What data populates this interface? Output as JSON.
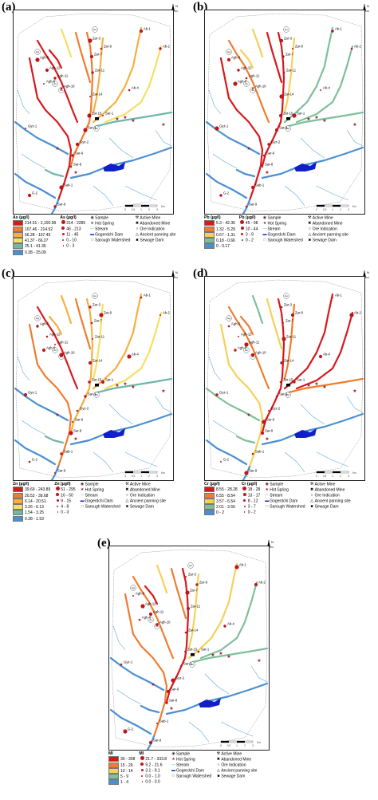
{
  "panels": [
    {
      "id": "a",
      "label": "(a)",
      "element": "As",
      "conc_title": "As (µg/l)",
      "sample_title": "As (µg/l)",
      "classes": [
        "214.51 - 2,100.58",
        "107.46 - 214.52",
        "66.28 - 107.45",
        "41.37 - 66.27",
        "25.1 - 41.36",
        "0.38 - 25.09"
      ],
      "class_colors": [
        "#d7191c",
        "#f07c2f",
        "#f5b041",
        "#f7df62",
        "#6fb7a6",
        "#4b8fd1"
      ],
      "sample_classes": [
        "214 - 2285",
        "46 - 213",
        "11 - 45",
        "0 - 10",
        "0 - 3"
      ]
    },
    {
      "id": "b",
      "label": "(b)",
      "element": "Pb",
      "conc_title": "Pb (µg/l)",
      "sample_title": "Pb (µg/l)",
      "classes": [
        "5.3 - 42.36",
        "1.32 - 5.29",
        "0.67 - 1.31",
        "0.18 - 0.66",
        "0 - 0.17"
      ],
      "class_colors": [
        "#d7191c",
        "#f07c2f",
        "#f5d15a",
        "#7fbf9b",
        "#4b8fd1"
      ],
      "sample_classes": [
        "45 - 98",
        "10 - 44",
        "3 - 9",
        "0 - 2"
      ]
    },
    {
      "id": "c",
      "label": "(c)",
      "element": "Zn",
      "conc_title": "Zn (µg/l)",
      "sample_title": "Zn (µg/l)",
      "classes": [
        "39.69 - 243.89",
        "20.52 - 39.68",
        "6.14 - 20.51",
        "3.26 - 6.13",
        "1.54 - 3.25",
        "0.38 - 1.53"
      ],
      "class_colors": [
        "#d7191c",
        "#f07c2f",
        "#f5b041",
        "#f7df62",
        "#6fb7a6",
        "#4b8fd1"
      ],
      "sample_classes": [
        "51 - 295",
        "16 - 50",
        "9 - 15",
        "4 - 8",
        "0 - 3"
      ]
    },
    {
      "id": "d",
      "label": "(d)",
      "element": "Cr",
      "conc_title": "Cr (µg/l)",
      "sample_title": "Cr (µg/l)",
      "classes": [
        "8.55 - 28.28",
        "6.55 - 8.54",
        "3.57 - 6.54",
        "2.01 - 3.56",
        "0 - 2"
      ],
      "class_colors": [
        "#d7191c",
        "#f07c2f",
        "#f5d15a",
        "#7fbf9b",
        "#4b8fd1"
      ],
      "sample_classes": [
        "18 - 28",
        "13 - 17",
        "8 - 12",
        "3 - 7",
        "0 - 2"
      ]
    },
    {
      "id": "e",
      "label": "(e)",
      "element": "MI",
      "conc_title": "MI",
      "sample_title": "MI",
      "classes": [
        "30 - 308",
        "15 - 29",
        "10 - 14",
        "5 - 9",
        "1 - 4"
      ],
      "class_colors": [
        "#d7191c",
        "#f07c2f",
        "#f5d15a",
        "#7fbf9b",
        "#4b8fd1"
      ],
      "sample_classes": [
        "21.7 - 333.8",
        "9.2 - 21.6",
        "3.1 - 9.1",
        "0.0 - 1.0",
        "0.0 - 0.0"
      ]
    }
  ],
  "common_legend": {
    "sample": "Sample",
    "hot_spring": "Hot Spring",
    "stream": "Stream",
    "dam": "Gogerdchi Dam",
    "watershed": "Sarough Watershed",
    "active_mine": "Active Mine",
    "abandoned_mine": "Abandoned Mine",
    "ore_indication": "Ore Indication",
    "panning_site": "Ancient panning site",
    "sewage_dam": "Sewage Dam"
  },
  "map_labels": [
    "Zar-1",
    "Zar-2",
    "Zar-3",
    "Zar-4",
    "Zar-5",
    "Zar-6",
    "Zar-7",
    "Zar-8",
    "Zar-9",
    "Zar-10",
    "Zar-11",
    "Zar-12",
    "Zar-13",
    "Zar-14",
    "Zar-15",
    "Agh-1",
    "Agh-2",
    "Agh-3",
    "Agh-4",
    "Agh-5",
    "Agh-6",
    "Agh-7",
    "Agh-8",
    "Agh-9",
    "Agh-10",
    "Agh-11",
    "Agh-12",
    "Agh-14",
    "Agh-15",
    "Agh-16",
    "Agh-17",
    "Ab-1",
    "Ab-2",
    "Ab-3",
    "Ab-4",
    "Pb, Zn",
    "Hg",
    "Au",
    "Sb",
    "As, Sb",
    "Mn",
    "Pyrite",
    "Sar-1",
    "Sar-2",
    "Sar-3",
    "Sar-4",
    "Sar-5",
    "Sar-6",
    "Sar-7",
    "Sar-8",
    "Sar-9",
    "Gyz-1",
    "Gyz-2",
    "Sab-1",
    "G-2",
    "Sol-1"
  ],
  "north_label": "N",
  "scale_labels": [
    "0",
    "0.5",
    "1",
    "2",
    "3"
  ],
  "scale_unit": "Km"
}
